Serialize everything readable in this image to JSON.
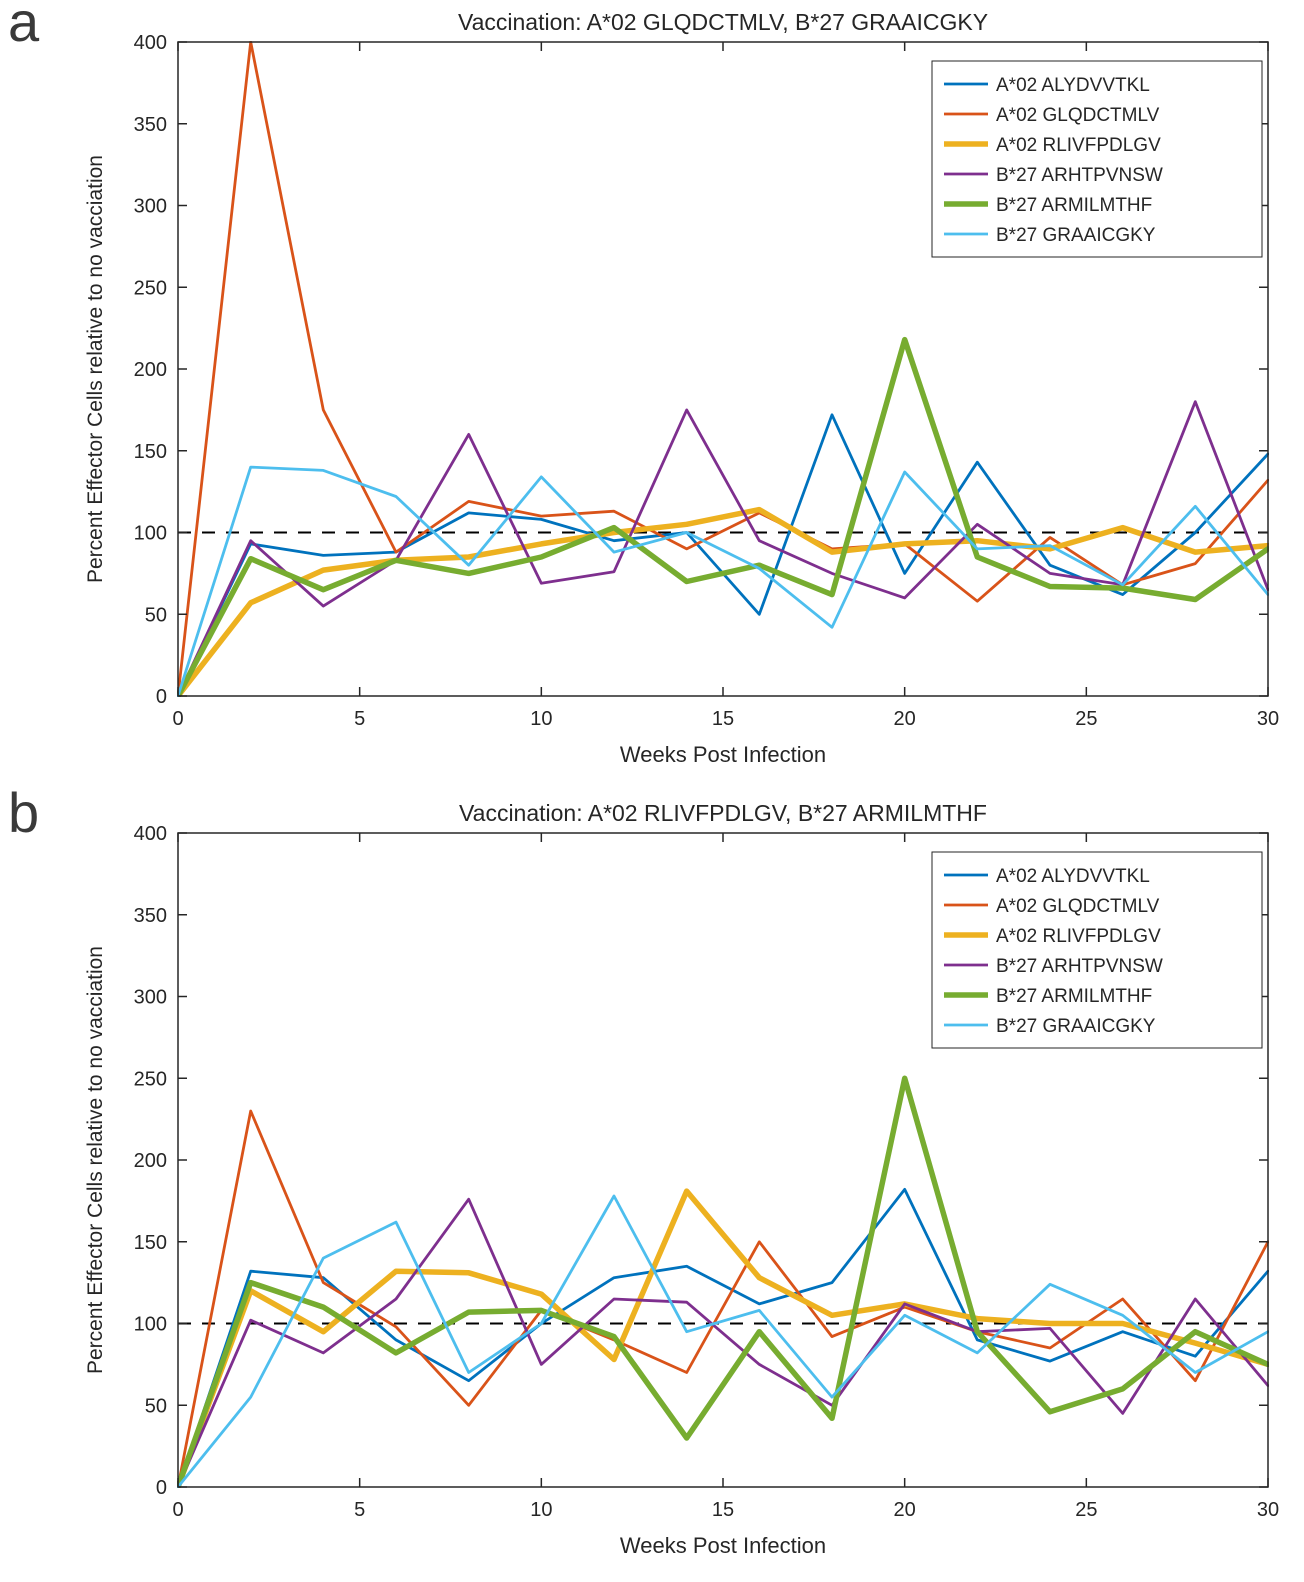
{
  "figure": {
    "panels": [
      {
        "label": "a"
      },
      {
        "label": "b"
      }
    ]
  },
  "chart_data": [
    {
      "type": "line",
      "panel": "a",
      "title": "Vaccination: A*02 GLQDCTMLV, B*27 GRAAICGKY",
      "xlabel": "Weeks Post Infection",
      "ylabel": "Percent Effector Cells relative to no vacciation",
      "xlim": [
        0,
        30
      ],
      "ylim": [
        0,
        400
      ],
      "xticks": [
        0,
        5,
        10,
        15,
        20,
        25,
        30
      ],
      "yticks": [
        0,
        50,
        100,
        150,
        200,
        250,
        300,
        350,
        400
      ],
      "grid": false,
      "legend_position": "top-right",
      "reference_line": {
        "y": 100,
        "style": "dashed",
        "color": "#000000"
      },
      "x": [
        0,
        2,
        4,
        6,
        8,
        10,
        12,
        14,
        16,
        18,
        20,
        22,
        24,
        26,
        28,
        30
      ],
      "series": [
        {
          "name": "A*02 ALYDVVTKL",
          "color": "#0072BD",
          "line_width": 2.8,
          "values": [
            0,
            93,
            86,
            88,
            112,
            108,
            95,
            100,
            50,
            172,
            75,
            143,
            80,
            62,
            100,
            148
          ]
        },
        {
          "name": "A*02 GLQDCTMLV",
          "color": "#D95319",
          "line_width": 2.8,
          "values": [
            0,
            400,
            175,
            88,
            119,
            110,
            113,
            90,
            112,
            90,
            93,
            58,
            97,
            68,
            81,
            132
          ]
        },
        {
          "name": "A*02 RLIVFPDLGV",
          "color": "#EDB120",
          "line_width": 5.5,
          "values": [
            0,
            57,
            77,
            83,
            85,
            93,
            100,
            105,
            114,
            88,
            93,
            95,
            90,
            103,
            88,
            92
          ]
        },
        {
          "name": "B*27 ARHTPVNSW",
          "color": "#7E2F8E",
          "line_width": 2.8,
          "values": [
            0,
            95,
            55,
            83,
            160,
            69,
            76,
            175,
            95,
            75,
            60,
            105,
            75,
            68,
            180,
            65
          ]
        },
        {
          "name": "B*27 ARMILMTHF",
          "color": "#77AC30",
          "line_width": 5.5,
          "values": [
            0,
            84,
            65,
            83,
            75,
            85,
            103,
            70,
            80,
            62,
            218,
            85,
            67,
            66,
            59,
            90
          ]
        },
        {
          "name": "B*27 GRAAICGKY",
          "color": "#4DBEEE",
          "line_width": 2.8,
          "values": [
            0,
            140,
            138,
            122,
            80,
            134,
            88,
            100,
            78,
            42,
            137,
            90,
            92,
            68,
            116,
            62
          ]
        }
      ]
    },
    {
      "type": "line",
      "panel": "b",
      "title": "Vaccination: A*02 RLIVFPDLGV, B*27 ARMILMTHF",
      "xlabel": "Weeks Post Infection",
      "ylabel": "Percent Effector Cells relative to no vacciation",
      "xlim": [
        0,
        30
      ],
      "ylim": [
        0,
        400
      ],
      "xticks": [
        0,
        5,
        10,
        15,
        20,
        25,
        30
      ],
      "yticks": [
        0,
        50,
        100,
        150,
        200,
        250,
        300,
        350,
        400
      ],
      "grid": false,
      "legend_position": "top-right",
      "reference_line": {
        "y": 100,
        "style": "dashed",
        "color": "#000000"
      },
      "x": [
        0,
        2,
        4,
        6,
        8,
        10,
        12,
        14,
        16,
        18,
        20,
        22,
        24,
        26,
        28,
        30
      ],
      "series": [
        {
          "name": "A*02 ALYDVVTKL",
          "color": "#0072BD",
          "line_width": 2.8,
          "values": [
            0,
            132,
            128,
            90,
            65,
            100,
            128,
            135,
            112,
            125,
            182,
            90,
            77,
            95,
            80,
            132
          ]
        },
        {
          "name": "A*02 GLQDCTMLV",
          "color": "#D95319",
          "line_width": 2.8,
          "values": [
            0,
            230,
            125,
            98,
            50,
            108,
            90,
            70,
            150,
            92,
            110,
            95,
            85,
            115,
            65,
            150
          ]
        },
        {
          "name": "A*02 RLIVFPDLGV",
          "color": "#EDB120",
          "line_width": 5.5,
          "values": [
            0,
            120,
            95,
            132,
            131,
            118,
            78,
            181,
            128,
            105,
            112,
            103,
            100,
            100,
            88,
            75
          ]
        },
        {
          "name": "B*27 ARHTPVNSW",
          "color": "#7E2F8E",
          "line_width": 2.8,
          "values": [
            0,
            102,
            82,
            115,
            176,
            75,
            115,
            113,
            75,
            50,
            112,
            95,
            97,
            45,
            115,
            62
          ]
        },
        {
          "name": "B*27 ARMILMTHF",
          "color": "#77AC30",
          "line_width": 5.5,
          "values": [
            0,
            125,
            110,
            82,
            107,
            108,
            92,
            30,
            95,
            42,
            250,
            95,
            46,
            60,
            95,
            75
          ]
        },
        {
          "name": "B*27 GRAAICGKY",
          "color": "#4DBEEE",
          "line_width": 2.8,
          "values": [
            0,
            55,
            140,
            162,
            70,
            100,
            178,
            95,
            108,
            55,
            105,
            82,
            124,
            105,
            70,
            95
          ]
        }
      ]
    }
  ]
}
